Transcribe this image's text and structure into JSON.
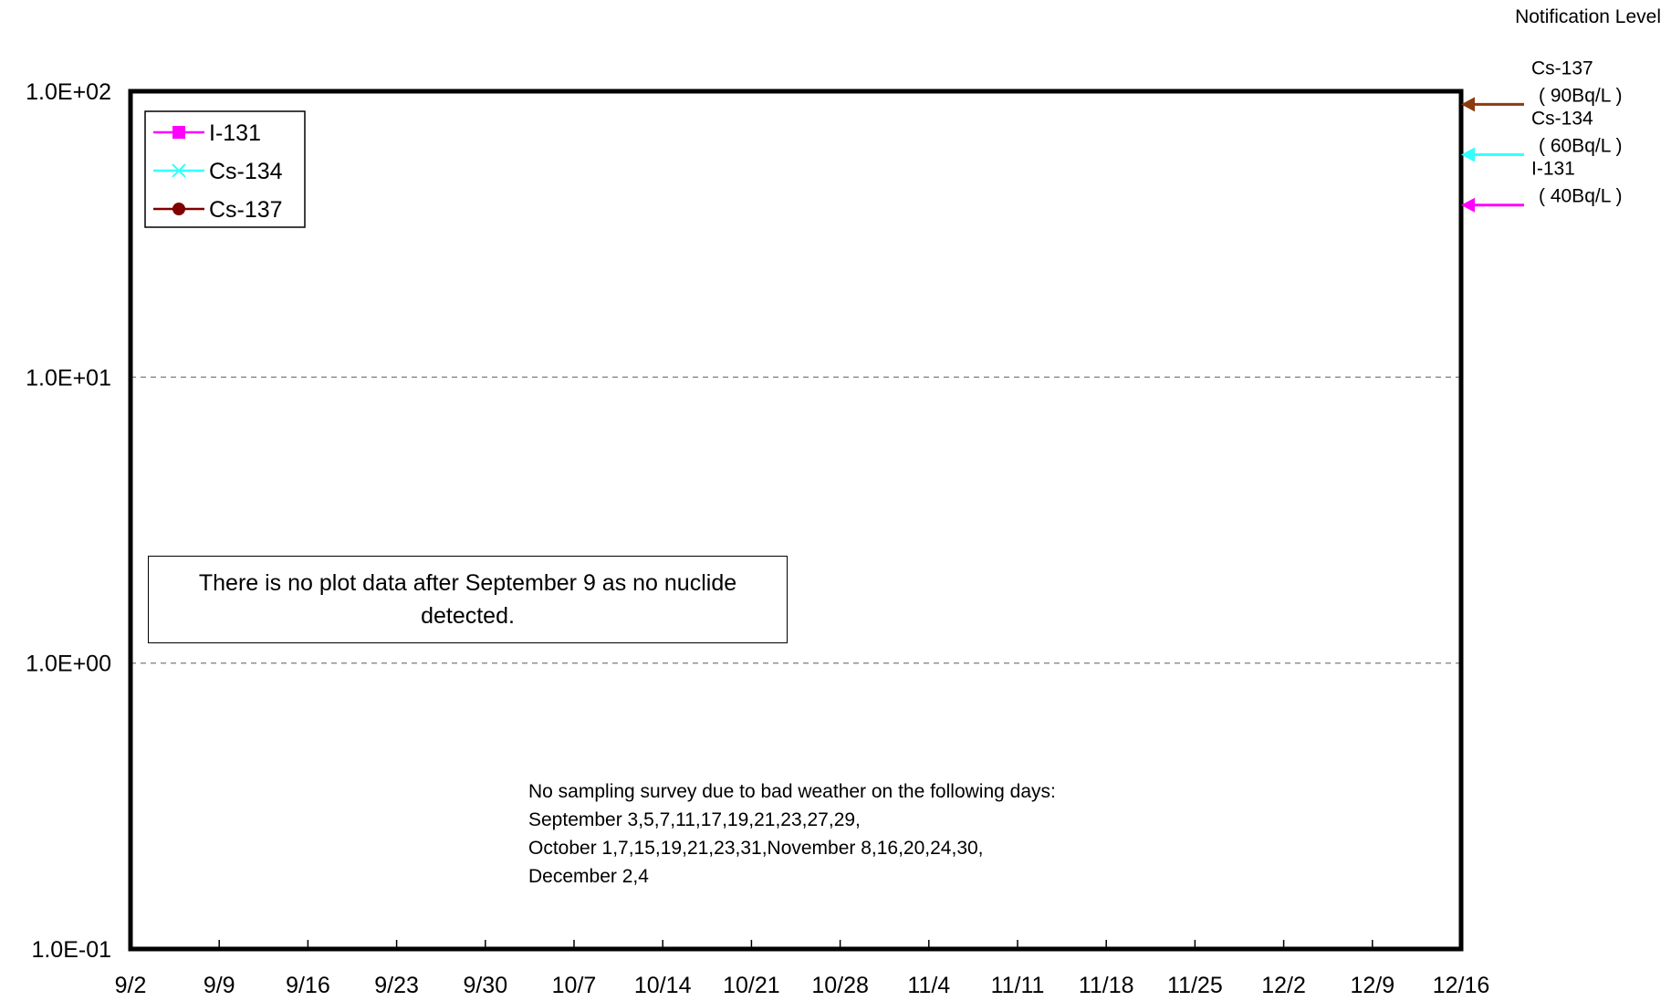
{
  "chart_data": {
    "type": "line",
    "title": "",
    "xlabel": "",
    "ylabel": "",
    "y_scale": "log",
    "ylim": [
      0.1,
      100
    ],
    "y_ticks": [
      {
        "value": 100,
        "label": "1.0E+02"
      },
      {
        "value": 10,
        "label": "1.0E+01"
      },
      {
        "value": 1,
        "label": "1.0E+00"
      },
      {
        "value": 0.1,
        "label": "1.0E-01"
      }
    ],
    "x_categories": [
      "9/2",
      "9/9",
      "9/16",
      "9/23",
      "9/30",
      "10/7",
      "10/14",
      "10/21",
      "10/28",
      "11/4",
      "11/11",
      "11/18",
      "11/25",
      "12/2",
      "12/9",
      "12/16"
    ],
    "grid": "horizontal dashed",
    "legend_position": "top-left",
    "series": [
      {
        "name": "I-131",
        "color": "#ff00ff",
        "marker": "square",
        "values": []
      },
      {
        "name": "Cs-134",
        "color": "#33ffff",
        "marker": "x",
        "values": []
      },
      {
        "name": "Cs-137",
        "color": "#800000",
        "marker": "circle",
        "values": []
      }
    ],
    "notification_levels": {
      "title": "Notification Level",
      "items": [
        {
          "nuclide": "Cs-137",
          "label": "( 90Bq/L )",
          "value": 90,
          "color": "#8b3a0f"
        },
        {
          "nuclide": "Cs-134",
          "label": "( 60Bq/L )",
          "value": 60,
          "color": "#33ffff"
        },
        {
          "nuclide": "I-131",
          "label": "( 40Bq/L )",
          "value": 40,
          "color": "#ff00ff"
        }
      ]
    },
    "annotations": {
      "no_data_note": "There is no plot data after September 9 as no nuclide detected.",
      "weather_note": [
        "No sampling survey due to bad weather on the following days:",
        "September 3,5,7,11,17,19,21,23,27,29,",
        "October 1,7,15,19,21,23,31,November 8,16,20,24,30,",
        "December 2,4"
      ]
    }
  }
}
